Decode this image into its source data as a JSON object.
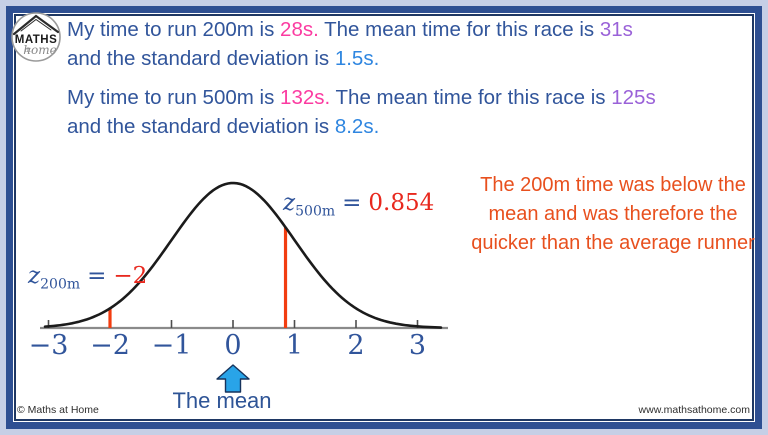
{
  "brand": {
    "logo_top": "MATHS",
    "logo_at": "at",
    "logo_bottom": "home",
    "copyright": "© Maths at Home",
    "website": "www.mathsathome.com"
  },
  "problem_200m": {
    "t1": "My time to run 200m is ",
    "time_value": "28s.",
    "t2": " The mean time for this race is ",
    "mean_value": "31s",
    "t3": "and the standard deviation is ",
    "sd_value": "1.5s."
  },
  "problem_500m": {
    "t1": "My time to run 500m is ",
    "time_value": "132s.",
    "t2": " The mean time for this race is ",
    "mean_value": "125s",
    "t3": "and the standard deviation is ",
    "sd_value": "8.2s."
  },
  "conclusion": "The 200m time was below the mean and was therefore the quicker than the average runner",
  "z_labels": {
    "z200_var": "z",
    "z200_sub": "200m",
    "eq": "=",
    "z200_val": "−2",
    "z500_var": "z",
    "z500_sub": "500m",
    "z500_val": "0.854"
  },
  "mean_label": "The mean",
  "chart_data": {
    "type": "line",
    "title": "",
    "description": "Standard normal distribution bell curve with z-scores marked by vertical red lines",
    "curve": "gaussian",
    "mean": 0,
    "sd": 1,
    "xlim": [
      -3.2,
      3.4
    ],
    "x_ticks": [
      -3,
      -2,
      -1,
      0,
      1,
      2,
      3
    ],
    "x_tick_labels": [
      "−3",
      "−2",
      "−1",
      "0",
      "1",
      "2",
      "3"
    ],
    "marked_z": [
      {
        "name": "z_200m",
        "value": -2
      },
      {
        "name": "z_500m",
        "value": 0.854
      }
    ]
  },
  "colors": {
    "text_blue": "#31559B",
    "magenta": "#fb3ba1",
    "purple": "#9a62d8",
    "azure": "#2f86e0",
    "z_value_red": "#e8281e",
    "marker_red": "#f23d10",
    "conclusion_orange": "#e8501e",
    "arrow_fill": "#29a4e8",
    "frame_blue": "#2e4f92",
    "frame_navy": "#1f3864",
    "curve_black": "#1b1b1b",
    "axis_gray": "#8a8a8a"
  }
}
